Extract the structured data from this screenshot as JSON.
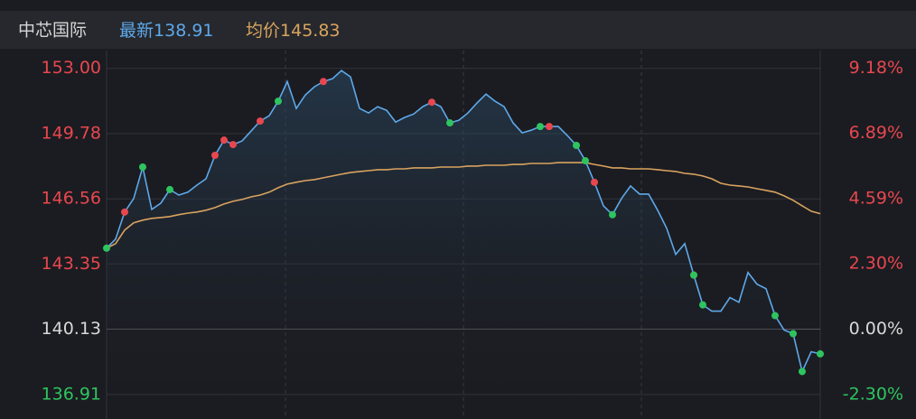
{
  "header": {
    "name": "中芯国际",
    "latest_label": "最新",
    "latest": 138.91,
    "avg_label": "均价",
    "avg": 145.83
  },
  "chart_data": {
    "type": "line",
    "ylim": [
      136.1,
      153.7
    ],
    "yticks": [
      {
        "value": 153,
        "label": "153.00"
      },
      {
        "value": 149.78,
        "label": "149.78"
      },
      {
        "value": 146.56,
        "label": "146.56"
      },
      {
        "value": 143.35,
        "label": "143.35"
      },
      {
        "value": 140.13,
        "label": "140.13"
      },
      {
        "value": 136.91,
        "label": "136.91"
      }
    ],
    "y2lim": [
      -2.88,
      9.68
    ],
    "y2ticks": [
      {
        "value": 9.18,
        "label": "9.18%"
      },
      {
        "value": 6.89,
        "label": "6.89%"
      },
      {
        "value": 4.59,
        "label": "4.59%"
      },
      {
        "value": 2.3,
        "label": "2.30%"
      },
      {
        "value": 0,
        "label": "0.00%"
      },
      {
        "value": -2.3,
        "label": "-2.30%"
      }
    ],
    "grid": true,
    "up_color": "#e8474f",
    "flat_color": "#d8d8d8",
    "down_color": "#2ec45f",
    "series": [
      {
        "color": "#5ea8ea",
        "values": [
          144.13,
          144.58,
          145.91,
          146.58,
          148.13,
          146.04,
          146.35,
          147.02,
          146.75,
          146.89,
          147.24,
          147.55,
          148.71,
          149.46,
          149.24,
          149.42,
          149.91,
          150.4,
          150.66,
          151.38,
          152.35,
          151.02,
          151.69,
          152.09,
          152.35,
          152.49,
          152.89,
          152.58,
          151.02,
          150.8,
          151.11,
          150.93,
          150.35,
          150.58,
          150.75,
          151.11,
          151.33,
          151.11,
          150.31,
          150.44,
          150.8,
          151.29,
          151.73,
          151.38,
          151.11,
          150.31,
          149.82,
          149.95,
          150.13,
          150.13,
          150.13,
          149.69,
          149.2,
          148.44,
          147.38,
          146.22,
          145.78,
          146.58,
          147.2,
          146.8,
          146.8,
          146.0,
          145.11,
          143.82,
          144.35,
          142.8,
          141.33,
          141.02,
          141.02,
          141.69,
          141.46,
          142.93,
          142.35,
          142.13,
          140.8,
          140.09,
          139.91,
          138.04,
          139.02,
          138.91
        ]
      },
      {
        "color": "#d9a35f",
        "values": [
          144.13,
          144.35,
          145.02,
          145.38,
          145.51,
          145.6,
          145.64,
          145.69,
          145.78,
          145.86,
          145.91,
          146.0,
          146.13,
          146.31,
          146.44,
          146.53,
          146.66,
          146.75,
          146.89,
          147.11,
          147.29,
          147.38,
          147.46,
          147.51,
          147.6,
          147.69,
          147.78,
          147.86,
          147.91,
          147.95,
          148.0,
          148.0,
          148.04,
          148.04,
          148.09,
          148.09,
          148.09,
          148.13,
          148.13,
          148.13,
          148.18,
          148.18,
          148.22,
          148.22,
          148.22,
          148.26,
          148.26,
          148.31,
          148.31,
          148.31,
          148.35,
          148.35,
          148.35,
          148.35,
          148.26,
          148.18,
          148.09,
          148.09,
          148.04,
          148.04,
          148.04,
          148.0,
          147.95,
          147.91,
          147.82,
          147.78,
          147.69,
          147.55,
          147.33,
          147.24,
          147.2,
          147.15,
          147.06,
          146.98,
          146.89,
          146.71,
          146.49,
          146.22,
          145.95,
          145.83
        ]
      }
    ],
    "signals": {
      "up": [
        2,
        12,
        13,
        14,
        17,
        24,
        36,
        49,
        54,
        65
      ],
      "down": [
        0,
        4,
        7,
        19,
        38,
        48,
        52,
        53,
        56,
        65,
        66,
        74,
        76,
        77,
        79
      ]
    }
  }
}
